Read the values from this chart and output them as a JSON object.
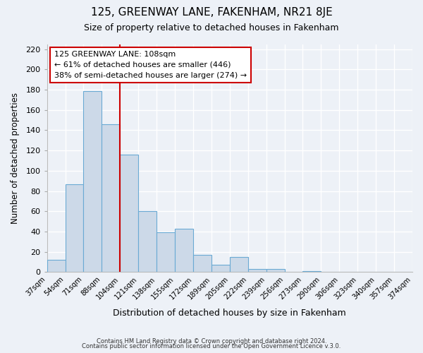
{
  "title": "125, GREENWAY LANE, FAKENHAM, NR21 8JE",
  "subtitle": "Size of property relative to detached houses in Fakenham",
  "xlabel": "Distribution of detached houses by size in Fakenham",
  "ylabel": "Number of detached properties",
  "bar_values": [
    12,
    87,
    179,
    146,
    116,
    60,
    39,
    43,
    17,
    7,
    15,
    3,
    3,
    0,
    1
  ],
  "all_labels": [
    "37sqm",
    "54sqm",
    "71sqm",
    "88sqm",
    "104sqm",
    "121sqm",
    "138sqm",
    "155sqm",
    "172sqm",
    "189sqm",
    "205sqm",
    "222sqm",
    "239sqm",
    "256sqm",
    "273sqm",
    "290sqm",
    "306sqm",
    "323sqm",
    "340sqm",
    "357sqm",
    "374sqm"
  ],
  "bar_color": "#ccd9e8",
  "bar_edge_color": "#6aaad4",
  "vline_color": "#cc0000",
  "ylim": [
    0,
    225
  ],
  "yticks": [
    0,
    20,
    40,
    60,
    80,
    100,
    120,
    140,
    160,
    180,
    200,
    220
  ],
  "annotation_title": "125 GREENWAY LANE: 108sqm",
  "annotation_line1": "← 61% of detached houses are smaller (446)",
  "annotation_line2": "38% of semi-detached houses are larger (274) →",
  "footer1": "Contains HM Land Registry data © Crown copyright and database right 2024.",
  "footer2": "Contains public sector information licensed under the Open Government Licence v.3.0.",
  "background_color": "#edf1f7",
  "plot_bg_color": "#edf1f7",
  "grid_color": "#ffffff",
  "fig_width": 6.0,
  "fig_height": 5.0,
  "dpi": 100
}
